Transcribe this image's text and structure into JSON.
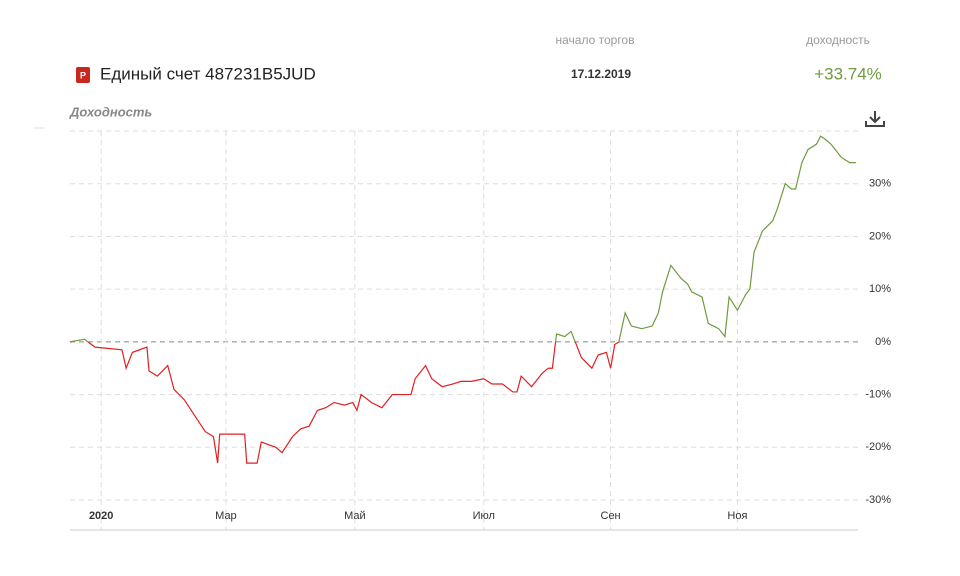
{
  "header": {
    "account": "Единый счет 487231B5JUD",
    "icon": "P",
    "start_label": "начало торгов",
    "start_date": "17.12.2019",
    "yield_label": "доходность",
    "yield_value": "+33.74%"
  },
  "chart_data": {
    "type": "line",
    "title": "Доходность",
    "color_positive": "#6f9a3f",
    "color_negative": "#e02020",
    "x": [
      0,
      7,
      12,
      25,
      27,
      30,
      37,
      38,
      42,
      47,
      50,
      55,
      60,
      65,
      69,
      71,
      72,
      84,
      85,
      90,
      92,
      99,
      102,
      107,
      111,
      115,
      119,
      123,
      127,
      132,
      136,
      138,
      140,
      145,
      150,
      155,
      160,
      164,
      166,
      171,
      174,
      179,
      184,
      188,
      193,
      199,
      203,
      208,
      213,
      215,
      217,
      222,
      227,
      230,
      232,
      234,
      238,
      241,
      246,
      251,
      254,
      258,
      260,
      262,
      264,
      267,
      270,
      275,
      280,
      283,
      285,
      289,
      294,
      297,
      299,
      304,
      307,
      312,
      315,
      317,
      321,
      325,
      327,
      329,
      333,
      338,
      340,
      344,
      347,
      349,
      352,
      355,
      359,
      361,
      363,
      366,
      368,
      371,
      375,
      378
    ],
    "values": [
      0,
      0.5,
      -1,
      -1.5,
      -5,
      -2,
      -1,
      -5.5,
      -6.5,
      -4.5,
      -9,
      -11,
      -14,
      -17,
      -18,
      -23,
      -17.5,
      -17.5,
      -23,
      -23,
      -19,
      -20,
      -21,
      -18,
      -16.5,
      -16,
      -13,
      -12.5,
      -11.5,
      -12,
      -11.5,
      -13,
      -10,
      -11.5,
      -12.5,
      -10,
      -10,
      -10,
      -7,
      -4.5,
      -7,
      -8.5,
      -8,
      -7.5,
      -7.5,
      -7,
      -8,
      -8,
      -9.5,
      -9.5,
      -6.5,
      -8.5,
      -6,
      -5,
      -5,
      1.5,
      1,
      2,
      -3,
      -5,
      -2.5,
      -2,
      -5,
      -0.5,
      0,
      5.5,
      3,
      2.5,
      3,
      5.5,
      9.5,
      14.5,
      12,
      11,
      9.5,
      8.5,
      3.5,
      2.5,
      1,
      8.5,
      6,
      9,
      10,
      17,
      21,
      23,
      25,
      30,
      29,
      29,
      34,
      36.5,
      37.5,
      39,
      38.5,
      37.5,
      36.5,
      35,
      34,
      34
    ],
    "xlim": [
      0,
      379
    ],
    "xticks": [
      {
        "value": 15,
        "label": "2020"
      },
      {
        "value": 75,
        "label": "Мар"
      },
      {
        "value": 137,
        "label": "Май"
      },
      {
        "value": 199,
        "label": "Июл"
      },
      {
        "value": 260,
        "label": "Сен"
      },
      {
        "value": 321,
        "label": "Ноя"
      }
    ],
    "ylim": [
      -30,
      40
    ],
    "yticks": [
      {
        "value": -30,
        "label": "-30%"
      },
      {
        "value": -20,
        "label": "-20%"
      },
      {
        "value": -10,
        "label": "-10%"
      },
      {
        "value": 0,
        "label": "0%"
      },
      {
        "value": 10,
        "label": "10%"
      },
      {
        "value": 20,
        "label": "20%"
      },
      {
        "value": 30,
        "label": "30%"
      }
    ],
    "grid": true
  }
}
